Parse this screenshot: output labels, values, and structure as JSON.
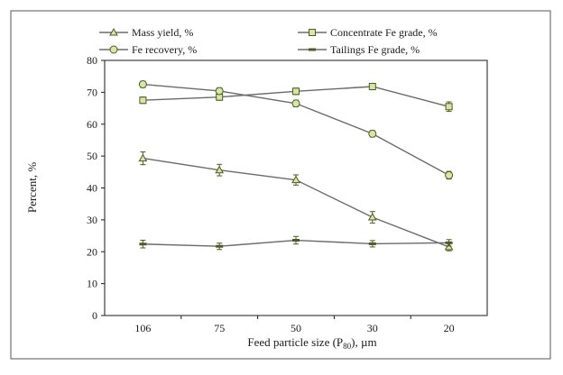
{
  "chart_data": {
    "type": "line",
    "categories": [
      "106",
      "75",
      "50",
      "30",
      "20"
    ],
    "xlabel": "Feed particle size (P",
    "xlabel_sub": "80",
    "xlabel_tail": "), µm",
    "ylabel": "Percent, %",
    "ylim": [
      0,
      80
    ],
    "yticks": [
      0,
      10,
      20,
      30,
      40,
      50,
      60,
      70,
      80
    ],
    "grid": false,
    "legend_position": "top",
    "series": [
      {
        "name": "Mass yield, %",
        "marker": "triangle",
        "values": [
          49.3,
          45.6,
          42.5,
          30.8,
          21.5
        ],
        "errors": [
          2.0,
          1.8,
          1.6,
          1.8,
          1.2
        ]
      },
      {
        "name": "Concentrate Fe grade, %",
        "marker": "square",
        "values": [
          67.5,
          68.5,
          70.3,
          71.8,
          65.5
        ],
        "errors": [
          1.0,
          1.0,
          1.0,
          1.0,
          1.5
        ]
      },
      {
        "name": "Fe recovery, %",
        "marker": "circle",
        "values": [
          72.5,
          70.4,
          66.5,
          57.0,
          44.0
        ],
        "errors": [
          1.0,
          1.0,
          1.0,
          1.0,
          1.2
        ]
      },
      {
        "name": "Tailings Fe grade, %",
        "marker": "dash",
        "values": [
          22.4,
          21.7,
          23.6,
          22.5,
          22.8
        ],
        "errors": [
          1.2,
          1.0,
          1.2,
          1.0,
          1.0
        ]
      }
    ],
    "colors": {
      "line": "#6b6b6b",
      "marker_fill": "#d6e6a4",
      "marker_edge": "#4d5a25",
      "axis": "#1a1a1a",
      "frame": "#555555"
    }
  }
}
